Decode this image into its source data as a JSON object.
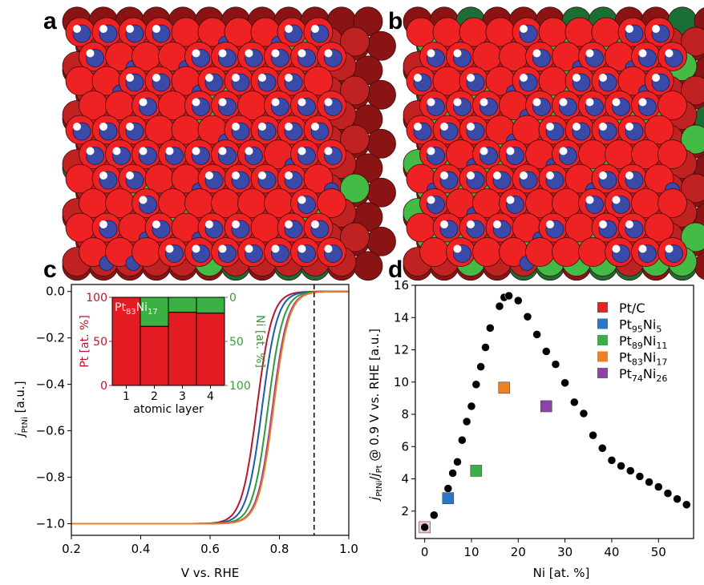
{
  "panels": {
    "a": {
      "label": "a",
      "description": "atomic surface model, Pt83Ni17 (top view)"
    },
    "b": {
      "label": "b",
      "description": "atomic surface model, Ni-enriched subsurface (top view)"
    },
    "c": {
      "label": "c"
    },
    "d": {
      "label": "d"
    }
  },
  "atom_colors": {
    "pt_surface": "#ee2222",
    "pt_sub": "#c02222",
    "pt_deep": "#8a1414",
    "ni_sub": "#44bb44",
    "ni_deep": "#1b6e34",
    "adsorbate_o": "#3a4aa8",
    "adsorbate_h": "#ffffff"
  },
  "chart_data": [
    {
      "id": "c",
      "type": "line",
      "xlabel": "V vs. RHE",
      "ylabel_main": "j",
      "ylabel_sub": "PtNi",
      "ylabel_unit": " [a.u.]",
      "xlim": [
        0.2,
        1.0
      ],
      "ylim": [
        -1.05,
        0.03
      ],
      "xticks": [
        "0.2",
        "0.4",
        "0.6",
        "0.8",
        "1.0"
      ],
      "xtick_values": [
        0.2,
        0.4,
        0.6,
        0.8,
        1.0
      ],
      "yticks": [
        "0.0",
        "−0.2",
        "−0.4",
        "−0.6",
        "−0.8",
        "−1.0"
      ],
      "ytick_values": [
        0.0,
        -0.2,
        -0.4,
        -0.6,
        -0.8,
        -1.0
      ],
      "vline": {
        "x": 0.9,
        "style": "dashed",
        "color": "#000000"
      },
      "curve_model": "j = -1 / (1 + exp((V - E_half)/width))",
      "series": [
        {
          "name": "Pt/C",
          "color": "#b5172e",
          "E_half": 0.735,
          "width": 0.022
        },
        {
          "name": "Pt95Ni5",
          "color": "#1f5aa8",
          "E_half": 0.75,
          "width": 0.022
        },
        {
          "name": "Pt89Ni11",
          "color": "#2e9a3a",
          "E_half": 0.767,
          "width": 0.022
        },
        {
          "name": "Pt74Ni26",
          "color": "#8a3b9a",
          "E_half": 0.78,
          "width": 0.022
        },
        {
          "name": "Pt83Ni17",
          "color": "#ef7d22",
          "E_half": 0.783,
          "width": 0.022
        }
      ],
      "inset": {
        "type": "bar",
        "xlabel": "atomic layer",
        "categories": [
          "1",
          "2",
          "3",
          "4"
        ],
        "pt_values": [
          100,
          67,
          83,
          82
        ],
        "ni_values": [
          0,
          33,
          17,
          18
        ],
        "left_axis": {
          "label": "Pt [at. %]",
          "ticks": [
            "0",
            "50",
            "100"
          ],
          "color": "#b5172e"
        },
        "right_axis": {
          "label": "Ni [at. %]",
          "ticks": [
            "0",
            "50",
            "100"
          ],
          "color": "#3a9a3a"
        },
        "annotation": {
          "pt": "Pt",
          "pt_sub": "83",
          "ni": "Ni",
          "ni_sub": "17"
        },
        "pt_color": "#e21c22",
        "ni_color": "#3cb043"
      }
    },
    {
      "id": "d",
      "type": "scatter",
      "xlabel": "Ni [at. %]",
      "ylabel": "jPtNi/jPt @ 0.9 V vs. RHE [a.u.]",
      "ylabel_parts": {
        "j1": "j",
        "s1": "PtNi",
        "slash": "/",
        "j2": "j",
        "s2": "Pt",
        "rest": " @ 0.9 V vs. RHE [a.u.]"
      },
      "xlim": [
        -2,
        57.5
      ],
      "ylim": [
        0.3,
        16
      ],
      "xticks": [
        "0",
        "10",
        "20",
        "30",
        "40",
        "50"
      ],
      "xtick_values": [
        0,
        10,
        20,
        30,
        40,
        50
      ],
      "yticks": [
        "2",
        "4",
        "6",
        "8",
        "10",
        "12",
        "14",
        "16"
      ],
      "ytick_values": [
        2,
        4,
        6,
        8,
        10,
        12,
        14,
        16
      ],
      "simulated": {
        "color": "#000000",
        "x": [
          0,
          2,
          5,
          6,
          7,
          8,
          9,
          10,
          11,
          12,
          13,
          14,
          16,
          17,
          18,
          20,
          22,
          24,
          26,
          28,
          30,
          32,
          34,
          36,
          38,
          40,
          42,
          44,
          46,
          48,
          50,
          52,
          54,
          56
        ],
        "y": [
          1.0,
          1.75,
          3.4,
          4.35,
          5.05,
          6.4,
          7.55,
          8.5,
          9.85,
          10.95,
          12.15,
          13.35,
          14.7,
          15.25,
          15.35,
          15.05,
          14.05,
          12.95,
          11.9,
          11.1,
          9.95,
          8.75,
          8.05,
          6.7,
          5.9,
          5.15,
          4.8,
          4.5,
          4.15,
          3.8,
          3.5,
          3.1,
          2.75,
          2.4
        ]
      },
      "experimental": [
        {
          "name": "Pt/C",
          "label": "Pt/C",
          "sub1": "",
          "ni": "",
          "sub2": "",
          "x": 0,
          "y": 1.0,
          "color": "#e2252b"
        },
        {
          "name": "Pt95Ni5",
          "label": "Pt",
          "sub1": "95",
          "ni": "Ni",
          "sub2": "5",
          "x": 5,
          "y": 2.8,
          "color": "#2a78c5"
        },
        {
          "name": "Pt89Ni11",
          "label": "Pt",
          "sub1": "89",
          "ni": "Ni",
          "sub2": "11",
          "x": 11,
          "y": 4.5,
          "color": "#3cae47"
        },
        {
          "name": "Pt83Ni17",
          "label": "Pt",
          "sub1": "83",
          "ni": "Ni",
          "sub2": "17",
          "x": 17,
          "y": 9.65,
          "color": "#f08022"
        },
        {
          "name": "Pt74Ni26",
          "label": "Pt",
          "sub1": "74",
          "ni": "Ni",
          "sub2": "26",
          "x": 26,
          "y": 8.5,
          "color": "#8d44a6"
        }
      ],
      "legend_position": "top-right"
    }
  ]
}
